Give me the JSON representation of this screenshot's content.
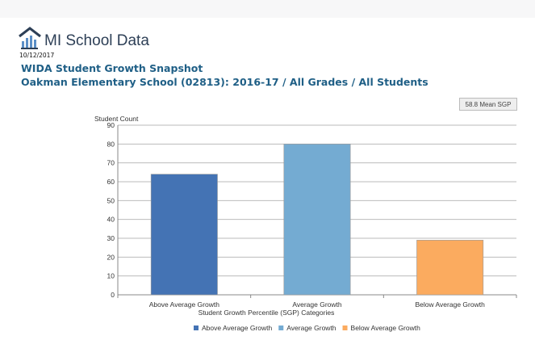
{
  "header": {
    "logo_text": "MI School Data",
    "date": "10/12/2017",
    "title": "WIDA Student Growth Snapshot",
    "subtitle": "Oakman Elementary School (02813): 2016-17 / All Grades / All Students",
    "mean_badge": "58.8 Mean SGP"
  },
  "chart_data": {
    "type": "bar",
    "categories": [
      "Above Average Growth",
      "Average Growth",
      "Below Average Growth"
    ],
    "values": [
      64,
      80,
      29
    ],
    "colors": [
      "#4473b4",
      "#74abd2",
      "#fbab5f"
    ],
    "ylabel": "Student Count",
    "xlabel": "Student Growth Percentile (SGP) Categories",
    "ylim": [
      0,
      90
    ],
    "yticks": [
      0,
      10,
      20,
      30,
      40,
      50,
      60,
      70,
      80,
      90
    ],
    "grid": true,
    "legend": {
      "placement": "bottom",
      "entries": [
        "Above Average Growth",
        "Average Growth",
        "Below Average Growth"
      ]
    }
  }
}
